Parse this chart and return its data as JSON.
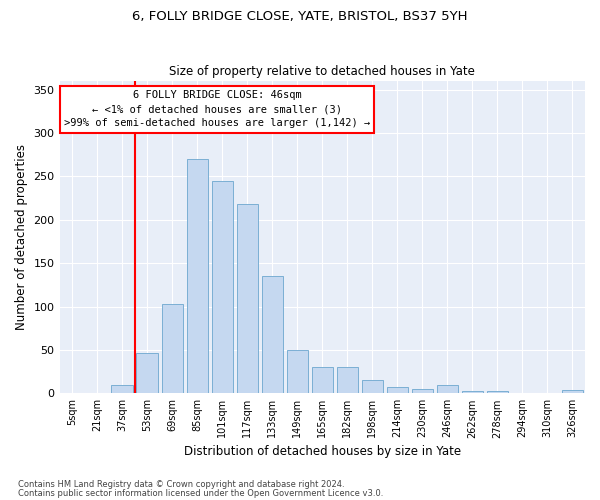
{
  "title_line1": "6, FOLLY BRIDGE CLOSE, YATE, BRISTOL, BS37 5YH",
  "title_line2": "Size of property relative to detached houses in Yate",
  "xlabel": "Distribution of detached houses by size in Yate",
  "ylabel": "Number of detached properties",
  "categories": [
    "5sqm",
    "21sqm",
    "37sqm",
    "53sqm",
    "69sqm",
    "85sqm",
    "101sqm",
    "117sqm",
    "133sqm",
    "149sqm",
    "165sqm",
    "182sqm",
    "198sqm",
    "214sqm",
    "230sqm",
    "246sqm",
    "262sqm",
    "278sqm",
    "294sqm",
    "310sqm",
    "326sqm"
  ],
  "values": [
    0,
    0,
    10,
    46,
    103,
    270,
    245,
    218,
    135,
    50,
    30,
    30,
    15,
    7,
    5,
    10,
    3,
    3,
    0,
    0,
    4
  ],
  "bar_color": "#c5d8f0",
  "bar_edge_color": "#7bafd4",
  "red_line_x": 2.5,
  "annotation_text": "6 FOLLY BRIDGE CLOSE: 46sqm\n← <1% of detached houses are smaller (3)\n>99% of semi-detached houses are larger (1,142) →",
  "annotation_box_color": "white",
  "annotation_box_edge_color": "red",
  "vline_color": "red",
  "ylim": [
    0,
    360
  ],
  "yticks": [
    0,
    50,
    100,
    150,
    200,
    250,
    300,
    350
  ],
  "background_color": "#e8eef8",
  "footer_line1": "Contains HM Land Registry data © Crown copyright and database right 2024.",
  "footer_line2": "Contains public sector information licensed under the Open Government Licence v3.0."
}
